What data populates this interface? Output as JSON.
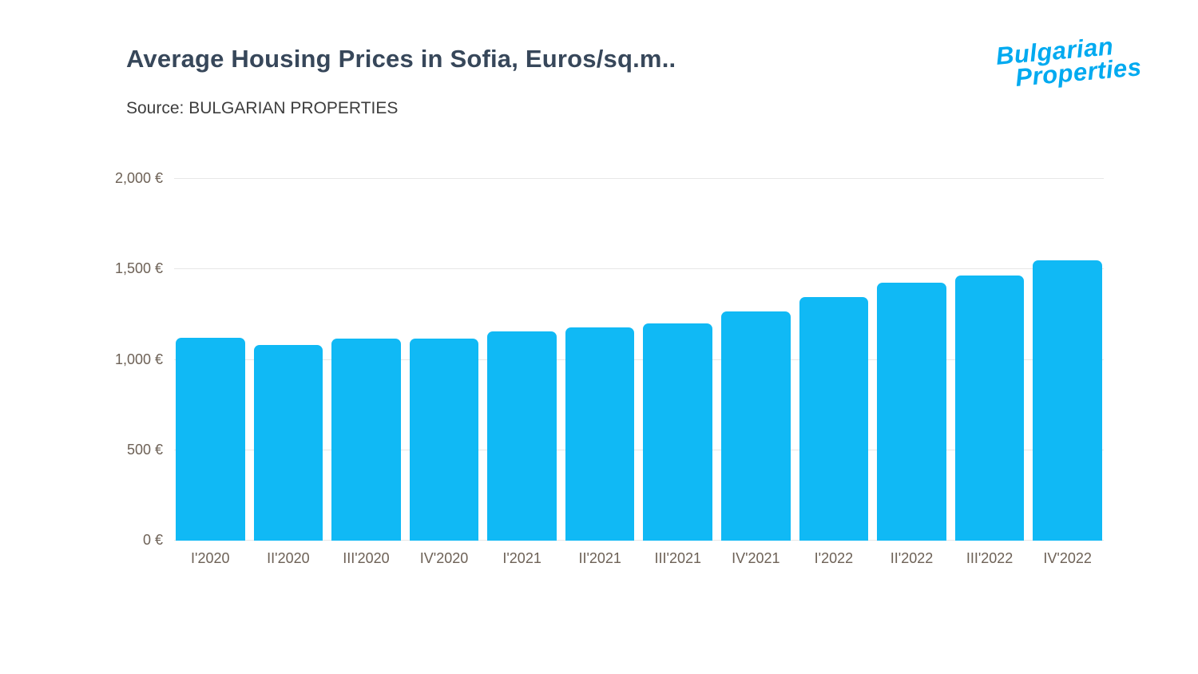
{
  "header": {
    "title": "Average Housing Prices in Sofia, Euros/sq.m..",
    "source": "Source: BULGARIAN PROPERTIES"
  },
  "logo": {
    "line1": "Bulgarian",
    "line2": "Properties"
  },
  "chart_data": {
    "type": "bar",
    "title": "Average Housing Prices in Sofia, Euros/sq.m..",
    "source": "Source: BULGARIAN PROPERTIES",
    "categories": [
      "I'2020",
      "II'2020",
      "III'2020",
      "IV'2020",
      "I'2021",
      "II'2021",
      "III'2021",
      "IV'2021",
      "I'2022",
      "II'2022",
      "III'2022",
      "IV'2022"
    ],
    "values": [
      1120,
      1080,
      1115,
      1118,
      1155,
      1180,
      1200,
      1265,
      1345,
      1425,
      1465,
      1550
    ],
    "unit": "Euros/sq.m",
    "ylim": [
      0,
      2000
    ],
    "ytick_values": [
      0,
      500,
      1000,
      1500,
      2000
    ],
    "ytick_labels": [
      "0 €",
      "500 €",
      "1,000 €",
      "1,500 €",
      "2,000 €"
    ],
    "grid": true,
    "legend": false
  },
  "colors": {
    "bar": "#10b9f5",
    "title_text": "#37475a",
    "axis_text": "#6d6156",
    "gridline": "#e7e7e7",
    "logo": "#00aaf0"
  }
}
